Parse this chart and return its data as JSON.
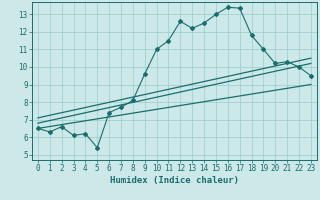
{
  "xlabel": "Humidex (Indice chaleur)",
  "background_color": "#cce8e8",
  "line_color": "#1a6e6e",
  "xlim": [
    -0.5,
    23.5
  ],
  "ylim": [
    4.7,
    13.7
  ],
  "yticks": [
    5,
    6,
    7,
    8,
    9,
    10,
    11,
    12,
    13
  ],
  "xticks": [
    0,
    1,
    2,
    3,
    4,
    5,
    6,
    7,
    8,
    9,
    10,
    11,
    12,
    13,
    14,
    15,
    16,
    17,
    18,
    19,
    20,
    21,
    22,
    23
  ],
  "series1_x": [
    0,
    1,
    2,
    3,
    4,
    5,
    6,
    7,
    8,
    9,
    10,
    11,
    12,
    13,
    14,
    15,
    16,
    17,
    18,
    19,
    20,
    21,
    22,
    23
  ],
  "series1_y": [
    6.5,
    6.3,
    6.6,
    6.1,
    6.2,
    5.4,
    7.4,
    7.7,
    8.1,
    9.6,
    11.0,
    11.5,
    12.6,
    12.2,
    12.5,
    13.0,
    13.4,
    13.35,
    11.8,
    11.0,
    10.2,
    10.3,
    10.0,
    9.5
  ],
  "series2_x": [
    0,
    23
  ],
  "series2_y": [
    6.5,
    9.0
  ],
  "series3_x": [
    0,
    23
  ],
  "series3_y": [
    6.8,
    10.2
  ],
  "series4_x": [
    0,
    23
  ],
  "series4_y": [
    7.1,
    10.5
  ],
  "grid_color": "#99cccc",
  "font_color": "#1a6e6e",
  "tick_fontsize": 5.5,
  "xlabel_fontsize": 6.5
}
